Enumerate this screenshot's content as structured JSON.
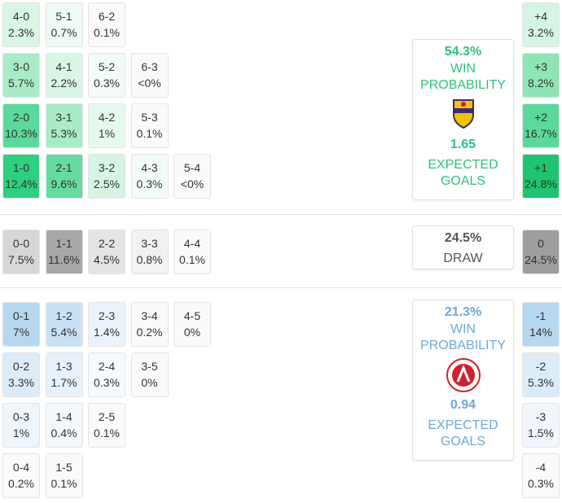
{
  "sections": [
    {
      "rows": [
        [
          {
            "score": "4-0",
            "prob": "2.3%",
            "color": "#d9f5e6"
          },
          {
            "score": "5-1",
            "prob": "0.7%",
            "color": "#eefbf4"
          },
          {
            "score": "6-2",
            "prob": "0.1%",
            "color": "#fafafa"
          }
        ],
        [
          {
            "score": "3-0",
            "prob": "5.7%",
            "color": "#a9ebc6"
          },
          {
            "score": "4-1",
            "prob": "2.2%",
            "color": "#d9f5e6"
          },
          {
            "score": "5-2",
            "prob": "0.3%",
            "color": "#f3fbf7"
          },
          {
            "score": "6-3",
            "prob": "<0%",
            "color": "#fafafa"
          }
        ],
        [
          {
            "score": "2-0",
            "prob": "10.3%",
            "color": "#5ad99a"
          },
          {
            "score": "3-1",
            "prob": "5.3%",
            "color": "#a9ebc6"
          },
          {
            "score": "4-2",
            "prob": "1%",
            "color": "#e6f8ee"
          },
          {
            "score": "5-3",
            "prob": "0.1%",
            "color": "#fafafa"
          }
        ],
        [
          {
            "score": "1-0",
            "prob": "12.4%",
            "color": "#2fcf7f"
          },
          {
            "score": "2-1",
            "prob": "9.6%",
            "color": "#66db9f"
          },
          {
            "score": "3-2",
            "prob": "2.5%",
            "color": "#d5f4e3"
          },
          {
            "score": "4-3",
            "prob": "0.3%",
            "color": "#f3fbf7"
          },
          {
            "score": "5-4",
            "prob": "<0%",
            "color": "#fafafa"
          }
        ]
      ],
      "outcomes": [
        {
          "label": "+4",
          "prob": "3.2%",
          "color": "#d5f4e3"
        },
        {
          "label": "+3",
          "prob": "8.2%",
          "color": "#8ee4b4"
        },
        {
          "label": "+2",
          "prob": "16.7%",
          "color": "#5ad99a"
        },
        {
          "label": "+1",
          "prob": "24.8%",
          "color": "#1ec46f"
        }
      ],
      "summary": {
        "probability": "54.3%",
        "probability_label": "WIN PROBABILITY",
        "expected_goals": "1.65",
        "expected_goals_label": "EXPECTED GOALS",
        "color": "#2ec27e"
      }
    },
    {
      "rows": [
        [
          {
            "score": "0-0",
            "prob": "7.5%",
            "color": "#d6d6d6"
          },
          {
            "score": "1-1",
            "prob": "11.6%",
            "color": "#a8a8a8"
          },
          {
            "score": "2-2",
            "prob": "4.5%",
            "color": "#e4e4e4"
          },
          {
            "score": "3-3",
            "prob": "0.8%",
            "color": "#f2f2f2"
          },
          {
            "score": "4-4",
            "prob": "0.1%",
            "color": "#fafafa"
          }
        ]
      ],
      "outcomes": [
        {
          "label": "0",
          "prob": "24.5%",
          "color": "#9e9e9e"
        }
      ],
      "summary": {
        "probability": "24.5%",
        "probability_label": "DRAW",
        "color": "#555555"
      }
    },
    {
      "rows": [
        [
          {
            "score": "0-1",
            "prob": "7%",
            "color": "#b6d7f0"
          },
          {
            "score": "1-2",
            "prob": "5.4%",
            "color": "#c8e1f5"
          },
          {
            "score": "2-3",
            "prob": "1.4%",
            "color": "#eaf3fb"
          },
          {
            "score": "3-4",
            "prob": "0.2%",
            "color": "#fafafa"
          },
          {
            "score": "4-5",
            "prob": "0%",
            "color": "#fafafa"
          }
        ],
        [
          {
            "score": "0-2",
            "prob": "3.3%",
            "color": "#dcebf8"
          },
          {
            "score": "1-3",
            "prob": "1.7%",
            "color": "#e6f1fa"
          },
          {
            "score": "2-4",
            "prob": "0.3%",
            "color": "#f6f9fd"
          },
          {
            "score": "3-5",
            "prob": "0%",
            "color": "#fafafa"
          }
        ],
        [
          {
            "score": "0-3",
            "prob": "1%",
            "color": "#eef5fb"
          },
          {
            "score": "1-4",
            "prob": "0.4%",
            "color": "#f4f8fc"
          },
          {
            "score": "2-5",
            "prob": "0.1%",
            "color": "#fafafa"
          }
        ],
        [
          {
            "score": "0-4",
            "prob": "0.2%",
            "color": "#fafafa"
          },
          {
            "score": "1-5",
            "prob": "0.1%",
            "color": "#fafafa"
          }
        ]
      ],
      "outcomes": [
        {
          "label": "-1",
          "prob": "14%",
          "color": "#b6d7f0"
        },
        {
          "label": "-2",
          "prob": "5.3%",
          "color": "#dcebf8"
        },
        {
          "label": "-3",
          "prob": "1.5%",
          "color": "#f0f6fc"
        },
        {
          "label": "-4",
          "prob": "0.3%",
          "color": "#fafafa"
        }
      ],
      "summary": {
        "probability": "21.3%",
        "probability_label": "WIN PROBABILITY",
        "expected_goals": "0.94",
        "expected_goals_label": "EXPECTED GOALS",
        "color": "#6aaad8"
      }
    }
  ]
}
